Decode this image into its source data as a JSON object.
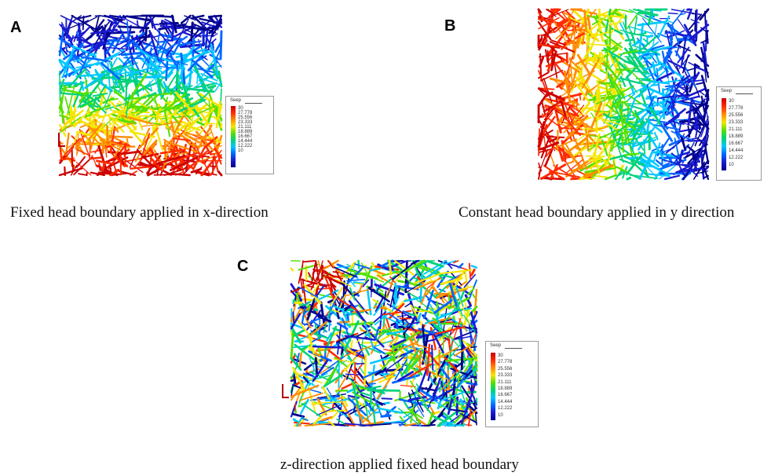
{
  "panels": [
    {
      "letter": "A",
      "caption": "Fixed head boundary applied in x-direction",
      "gradient": "top-to-bottom",
      "legend": {
        "title": "Seep",
        "values": [
          "30",
          "27.778",
          "25.556",
          "23.333",
          "21.111",
          "18.889",
          "16.667",
          "14.444",
          "12.222",
          "10"
        ]
      }
    },
    {
      "letter": "B",
      "caption": "Constant head boundary applied in y direction",
      "gradient": "left-to-right",
      "legend": {
        "title": "Seep",
        "values": [
          "30",
          "27.778",
          "25.556",
          "23.333",
          "21.111",
          "18.889",
          "16.667",
          "14.444",
          "12.222",
          "10"
        ]
      }
    },
    {
      "letter": "C",
      "caption": "z-direction applied fixed head boundary",
      "gradient": "mixed",
      "legend": {
        "title": "Seep",
        "values": [
          "30",
          "27.778",
          "25.556",
          "23.333",
          "21.111",
          "18.889",
          "16.667",
          "14.444",
          "12.222",
          "10"
        ]
      }
    }
  ],
  "colormap": [
    "#cc0000",
    "#ff2a00",
    "#ff8c00",
    "#f5e600",
    "#55e000",
    "#00d27a",
    "#00c8ff",
    "#0066ff",
    "#1a1ad0",
    "#00008b"
  ]
}
